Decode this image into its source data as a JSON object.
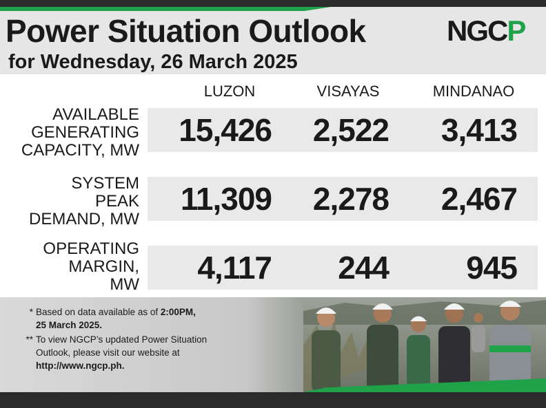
{
  "header": {
    "title": "Power Situation Outlook",
    "subtitle": "for Wednesday, 26 March 2025",
    "logo_left": "NGC",
    "logo_right": "P"
  },
  "columns": [
    "LUZON",
    "VISAYAS",
    "MINDANAO"
  ],
  "rows": [
    {
      "label_lines": [
        "AVAILABLE",
        "GENERATING",
        "CAPACITY, MW"
      ],
      "values": [
        "15,426",
        "2,522",
        "3,413"
      ]
    },
    {
      "label_lines": [
        "SYSTEM",
        "PEAK",
        "DEMAND, MW"
      ],
      "values": [
        "11,309",
        "2,278",
        "2,467"
      ]
    },
    {
      "label_lines": [
        "OPERATING",
        "MARGIN,",
        "MW"
      ],
      "values": [
        "4,117",
        "244",
        "945"
      ]
    }
  ],
  "notes": [
    {
      "mark": "*",
      "text": "Based on data available as of ",
      "bold": "2:00PM,",
      "line2": "25 March 2025."
    },
    {
      "mark": "**",
      "line1": "To view NGCP’s updated Power Situation",
      "line2": "Outlook, please visit our website at",
      "bold": "http://www.ngcp.ph."
    }
  ],
  "colors": {
    "brand_green": "#1fa24a",
    "dark": "#2b2b2b",
    "band": "#e9e9e9"
  }
}
